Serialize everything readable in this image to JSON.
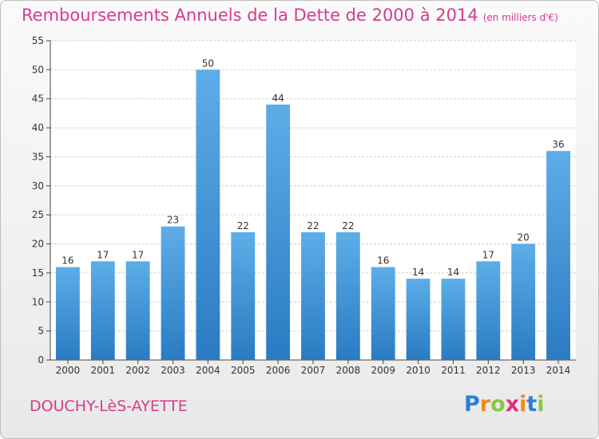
{
  "title": "Remboursements Annuels de la Dette de 2000 à 2014",
  "unit_note": "(en milliers d'€)",
  "commune": "DOUCHY-LèS-AYETTE",
  "logo": {
    "text": "Proxiti",
    "letters": [
      {
        "char": "P",
        "color": "#2e7fd3"
      },
      {
        "char": "r",
        "color": "#f08a1c"
      },
      {
        "char": "o",
        "color": "#8cc63e"
      },
      {
        "char": "x",
        "color": "#e0307a"
      },
      {
        "char": "i",
        "color": "#f08a1c"
      },
      {
        "char": "t",
        "color": "#2e7fd3"
      },
      {
        "char": "i",
        "color": "#8cc63e"
      }
    ]
  },
  "colors": {
    "accent": "#d83a8e",
    "bar_top": "#5dade8",
    "bar_bottom": "#2a7bc2",
    "grid": "#cfcfcf"
  },
  "chart_data": {
    "type": "bar",
    "categories": [
      "2000",
      "2001",
      "2002",
      "2003",
      "2004",
      "2005",
      "2006",
      "2007",
      "2008",
      "2009",
      "2010",
      "2011",
      "2012",
      "2013",
      "2014"
    ],
    "values": [
      16,
      17,
      17,
      23,
      50,
      22,
      44,
      22,
      22,
      16,
      14,
      14,
      17,
      20,
      36
    ],
    "ylim": [
      0,
      55
    ],
    "yticks": [
      0,
      5,
      10,
      15,
      20,
      25,
      30,
      35,
      40,
      45,
      50,
      55
    ],
    "grid": true,
    "data_labels": true
  }
}
